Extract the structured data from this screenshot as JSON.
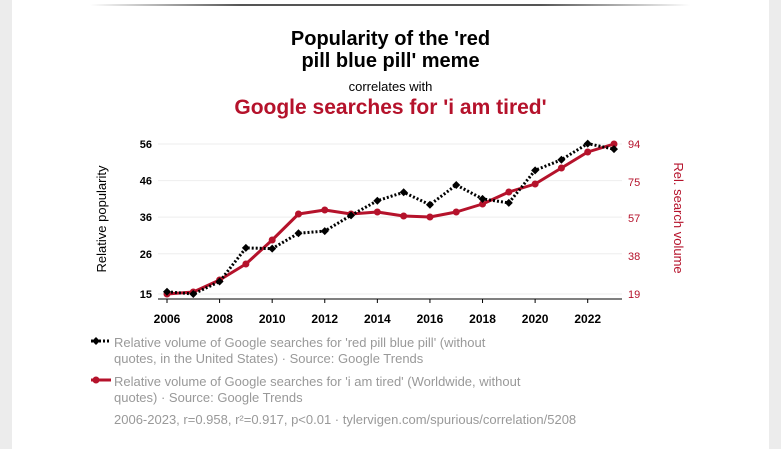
{
  "title": "Popularity of the 'red pill blue pill' meme",
  "title_line1": "Popularity of the 'red",
  "title_line2": "pill blue pill' meme",
  "correlates_text": "correlates with",
  "subtitle": "Google searches for 'i am tired'",
  "colors": {
    "series1": "#000000",
    "series2": "#b5122b",
    "gridline": "#eeeeee"
  },
  "chart_data": {
    "type": "line",
    "title": "Popularity of the 'red pill blue pill' meme",
    "subtitle": "Google searches for 'i am tired'",
    "xlabel": "",
    "ylabel_left": "Relative popularity",
    "ylabel_right": "Rel. search volume",
    "x": [
      2006,
      2007,
      2008,
      2009,
      2010,
      2011,
      2012,
      2013,
      2014,
      2015,
      2016,
      2017,
      2018,
      2019,
      2020,
      2021,
      2022,
      2023
    ],
    "x_ticks": [
      "2006",
      "2008",
      "2010",
      "2012",
      "2014",
      "2016",
      "2018",
      "2020",
      "2022"
    ],
    "y_left_ticks": [
      "15",
      "26",
      "36",
      "46",
      "56"
    ],
    "y_right_ticks": [
      "19",
      "38",
      "57",
      "75",
      "94"
    ],
    "y_left_range": [
      15,
      56
    ],
    "y_right_range": [
      19,
      94
    ],
    "grid": true,
    "series": [
      {
        "name": "Relative volume of Google searches for 'red pill blue pill' (without quotes, in the United States) · Source: Google Trends",
        "axis": "left",
        "style": "dotted",
        "marker": "diamond",
        "values": [
          15.6,
          15,
          18.4,
          27.6,
          27.4,
          31.6,
          32.2,
          36.5,
          40.5,
          42.8,
          39.4,
          44.8,
          41,
          39.9,
          48.8,
          51.7,
          56.1,
          54.6
        ]
      },
      {
        "name": "Relative volume of Google searches for 'i am tired' (Worldwide, without quotes) · Source: Google Trends",
        "axis": "right",
        "style": "solid",
        "marker": "circle",
        "values": [
          19,
          20,
          26,
          34,
          46,
          59,
          61,
          59,
          60,
          58,
          57.5,
          60,
          64,
          70,
          74,
          82,
          90,
          94
        ]
      }
    ]
  },
  "legend": [
    {
      "line1": "Relative volume of Google searches for 'red pill blue pill' (without",
      "line2": "quotes, in the United States) · Source: Google Trends"
    },
    {
      "line1": "Relative volume of Google searches for 'i am tired' (Worldwide, without",
      "line2": "quotes) · Source: Google Trends"
    }
  ],
  "stats_text": "2006-2023, r=0.958, r²=0.917, p<0.01 · tylervigen.com/spurious/correlation/5208"
}
